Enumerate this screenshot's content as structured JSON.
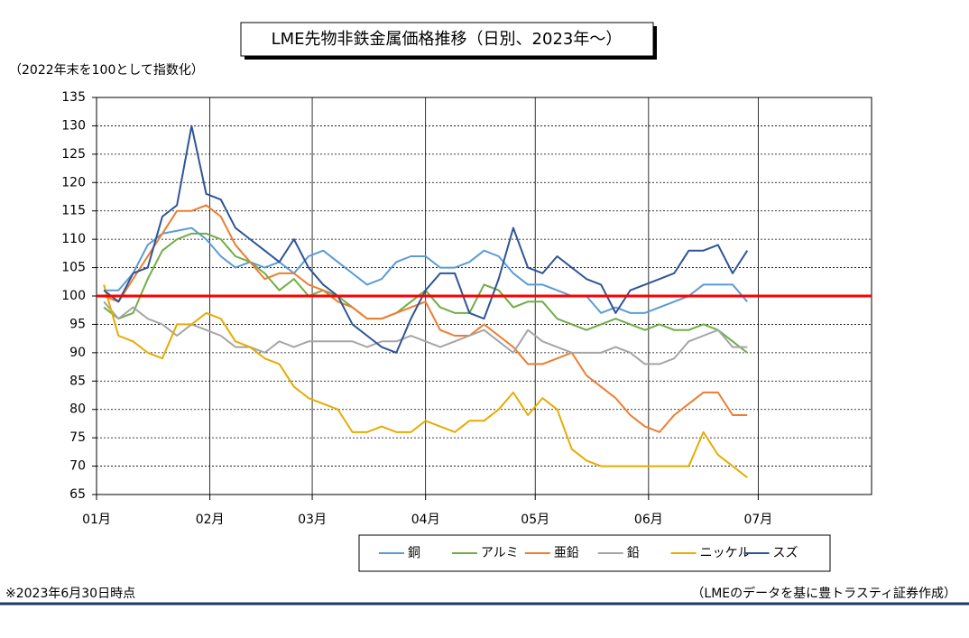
{
  "chart_data": {
    "type": "line",
    "title": "LME先物非鉄金属価格推移（日別、2023年～）",
    "y_label": "（2022年末を100として指数化）",
    "footnote": "※2023年6月30日時点",
    "source": "（LMEのデータを基に豊トラスティ証券作成）",
    "xlim": [
      0,
      212
    ],
    "xticks": [
      {
        "value": 0,
        "label": "01月"
      },
      {
        "value": 31,
        "label": "02月"
      },
      {
        "value": 59,
        "label": "03月"
      },
      {
        "value": 90,
        "label": "04月"
      },
      {
        "value": 120,
        "label": "05月"
      },
      {
        "value": 151,
        "label": "06月"
      },
      {
        "value": 181,
        "label": "07月"
      }
    ],
    "ylim": [
      65,
      135
    ],
    "yticks": [
      65,
      70,
      75,
      80,
      85,
      90,
      95,
      100,
      105,
      110,
      115,
      120,
      125,
      130,
      135
    ],
    "grid": true,
    "reference_line": {
      "value": 100,
      "color": "#ff0000"
    },
    "legend": "bottom",
    "x": [
      2,
      6,
      10,
      14,
      18,
      22,
      26,
      30,
      34,
      38,
      42,
      46,
      50,
      54,
      58,
      62,
      66,
      70,
      74,
      78,
      82,
      86,
      90,
      94,
      98,
      102,
      106,
      110,
      114,
      118,
      122,
      126,
      130,
      134,
      138,
      142,
      146,
      150,
      154,
      158,
      162,
      166,
      170,
      174,
      178
    ],
    "series": [
      {
        "name": "銅",
        "color": "#5b9bd5",
        "values": [
          101,
          101,
          104,
          109,
          111,
          111.5,
          112,
          110,
          107,
          105,
          106,
          105,
          106,
          104,
          107,
          108,
          106,
          104,
          102,
          103,
          106,
          107,
          107,
          105,
          105,
          106,
          108,
          107,
          104,
          102,
          102,
          101,
          100,
          100,
          97,
          98,
          97,
          97,
          98,
          99,
          100,
          102,
          102,
          102,
          99
        ]
      },
      {
        "name": "アルミ",
        "color": "#70ad47",
        "values": [
          98,
          96,
          97,
          103,
          108,
          110,
          111,
          111,
          110,
          107,
          106,
          104,
          101,
          103,
          100,
          101,
          100,
          98,
          96,
          96,
          97,
          99,
          101,
          98,
          97,
          97,
          102,
          101,
          98,
          99,
          99,
          96,
          95,
          94,
          95,
          96,
          95,
          94,
          95,
          94,
          94,
          95,
          94,
          92,
          90
        ]
      },
      {
        "name": "亜鉛",
        "color": "#ed7d31",
        "values": [
          100,
          99,
          103,
          107,
          111,
          115,
          115,
          116,
          114,
          109,
          106,
          103,
          104,
          104,
          102,
          101,
          99,
          98,
          96,
          96,
          97,
          98,
          99,
          94,
          93,
          93,
          95,
          93,
          91,
          88,
          88,
          89,
          90,
          86,
          84,
          82,
          79,
          77,
          76,
          79,
          81,
          83,
          83,
          79,
          79
        ]
      },
      {
        "name": "鉛",
        "color": "#a5a5a5",
        "values": [
          99,
          96,
          98,
          96,
          95,
          93,
          95,
          94,
          93,
          91,
          91,
          90,
          92,
          91,
          92,
          92,
          92,
          92,
          91,
          92,
          92,
          93,
          92,
          91,
          92,
          93,
          94,
          92,
          90,
          94,
          92,
          91,
          90,
          90,
          90,
          91,
          90,
          88,
          88,
          89,
          92,
          93,
          94,
          91,
          91
        ]
      },
      {
        "name": "ニッケル",
        "color": "#e6ac00",
        "values": [
          102,
          93,
          92,
          90,
          89,
          95,
          95,
          97,
          96,
          92,
          91,
          89,
          88,
          84,
          82,
          81,
          80,
          76,
          76,
          77,
          76,
          76,
          78,
          77,
          76,
          78,
          78,
          80,
          83,
          79,
          82,
          80,
          73,
          71,
          70,
          70,
          70,
          70,
          70,
          70,
          70,
          76,
          72,
          70,
          68
        ]
      },
      {
        "name": "スズ",
        "color": "#2f5597",
        "values": [
          101,
          99,
          104,
          105,
          114,
          116,
          130,
          118,
          117,
          112,
          110,
          108,
          106,
          110,
          105,
          102,
          100,
          95,
          93,
          91,
          90,
          96,
          101,
          104,
          104,
          97,
          96,
          103,
          112,
          105,
          104,
          107,
          105,
          103,
          102,
          97,
          101,
          102,
          103,
          104,
          108,
          108,
          109,
          104,
          108
        ]
      }
    ]
  }
}
